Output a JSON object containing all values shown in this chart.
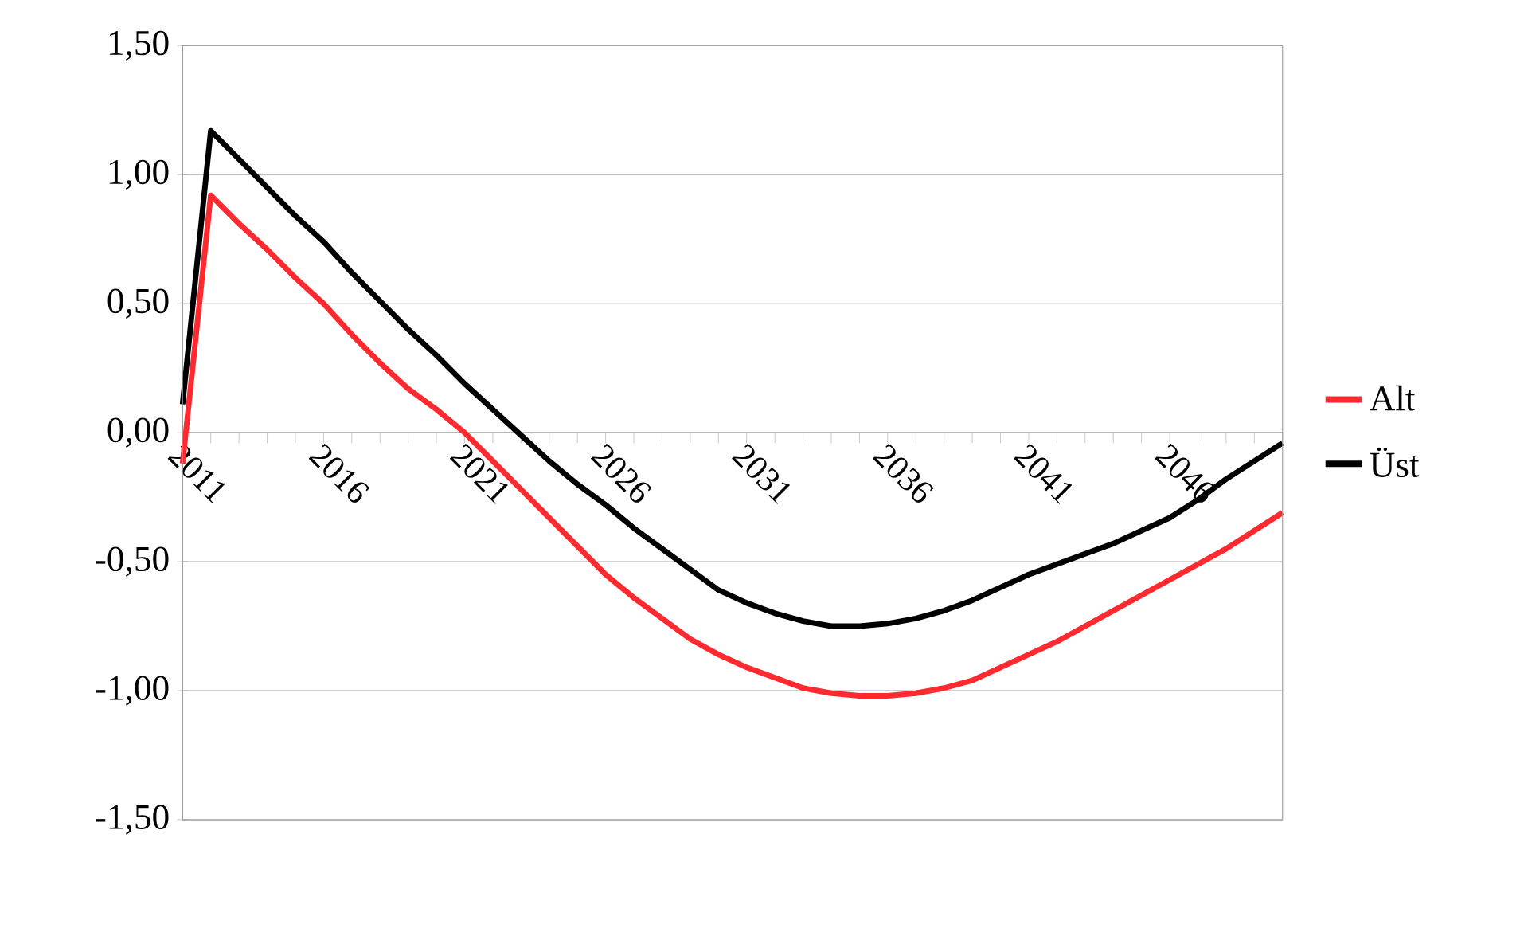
{
  "chart_data": {
    "type": "line",
    "x": [
      2011,
      2012,
      2013,
      2014,
      2015,
      2016,
      2017,
      2018,
      2019,
      2020,
      2021,
      2022,
      2023,
      2024,
      2025,
      2026,
      2027,
      2028,
      2029,
      2030,
      2031,
      2032,
      2033,
      2034,
      2035,
      2036,
      2037,
      2038,
      2039,
      2040,
      2041,
      2042,
      2043,
      2044,
      2045,
      2046,
      2047,
      2048,
      2049,
      2050
    ],
    "series": [
      {
        "name": "Alt",
        "color": "#ff2a2f",
        "values": [
          -0.12,
          0.92,
          0.81,
          0.71,
          0.6,
          0.5,
          0.38,
          0.27,
          0.17,
          0.09,
          0.0,
          -0.11,
          -0.22,
          -0.33,
          -0.44,
          -0.55,
          -0.64,
          -0.72,
          -0.8,
          -0.86,
          -0.91,
          -0.95,
          -0.99,
          -1.01,
          -1.02,
          -1.02,
          -1.01,
          -0.99,
          -0.96,
          -0.91,
          -0.86,
          -0.81,
          -0.75,
          -0.69,
          -0.63,
          -0.57,
          -0.51,
          -0.45,
          -0.38,
          -0.31
        ]
      },
      {
        "name": "Üst",
        "color": "#000000",
        "values": [
          0.11,
          1.17,
          1.06,
          0.95,
          0.84,
          0.74,
          0.62,
          0.51,
          0.4,
          0.3,
          0.19,
          0.09,
          -0.01,
          -0.11,
          -0.2,
          -0.28,
          -0.37,
          -0.45,
          -0.53,
          -0.61,
          -0.66,
          -0.7,
          -0.73,
          -0.75,
          -0.75,
          -0.74,
          -0.72,
          -0.69,
          -0.65,
          -0.6,
          -0.55,
          -0.51,
          -0.47,
          -0.43,
          -0.38,
          -0.33,
          -0.26,
          -0.18,
          -0.11,
          -0.04
        ]
      }
    ],
    "xlim": [
      2011,
      2050
    ],
    "xticks": [
      2011,
      {
        "value": 2012,
        "label": null
      },
      {
        "value": 2013,
        "label": null
      },
      {
        "value": 2014,
        "label": null
      },
      {
        "value": 2015,
        "label": null
      },
      2016,
      {
        "value": 2017,
        "label": null
      },
      {
        "value": 2018,
        "label": null
      },
      {
        "value": 2019,
        "label": null
      },
      {
        "value": 2020,
        "label": null
      },
      2021,
      {
        "value": 2022,
        "label": null
      },
      {
        "value": 2023,
        "label": null
      },
      {
        "value": 2024,
        "label": null
      },
      {
        "value": 2025,
        "label": null
      },
      2026,
      {
        "value": 2027,
        "label": null
      },
      {
        "value": 2028,
        "label": null
      },
      {
        "value": 2029,
        "label": null
      },
      {
        "value": 2030,
        "label": null
      },
      2031,
      {
        "value": 2032,
        "label": null
      },
      {
        "value": 2033,
        "label": null
      },
      {
        "value": 2034,
        "label": null
      },
      {
        "value": 2035,
        "label": null
      },
      2036,
      {
        "value": 2037,
        "label": null
      },
      {
        "value": 2038,
        "label": null
      },
      {
        "value": 2039,
        "label": null
      },
      {
        "value": 2040,
        "label": null
      },
      2041,
      {
        "value": 2042,
        "label": null
      },
      {
        "value": 2043,
        "label": null
      },
      {
        "value": 2044,
        "label": null
      },
      {
        "value": 2045,
        "label": null
      },
      2046,
      {
        "value": 2047,
        "label": null
      },
      {
        "value": 2048,
        "label": null
      },
      {
        "value": 2049,
        "label": null
      },
      {
        "value": 2050,
        "label": null
      }
    ],
    "ylim": [
      -1.5,
      1.5
    ],
    "yticks": [
      {
        "value": -1.5,
        "label": "-1,50"
      },
      {
        "value": -1.0,
        "label": "-1,00"
      },
      {
        "value": -0.5,
        "label": "-0,50"
      },
      {
        "value": 0,
        "label": "0,00"
      },
      {
        "value": 0.5,
        "label": "0,50"
      },
      {
        "value": 1.0,
        "label": "1,00"
      },
      {
        "value": 1.5,
        "label": "1,50"
      }
    ],
    "grid": "y",
    "legend": "right",
    "marker": "none",
    "line_style": "solid"
  }
}
